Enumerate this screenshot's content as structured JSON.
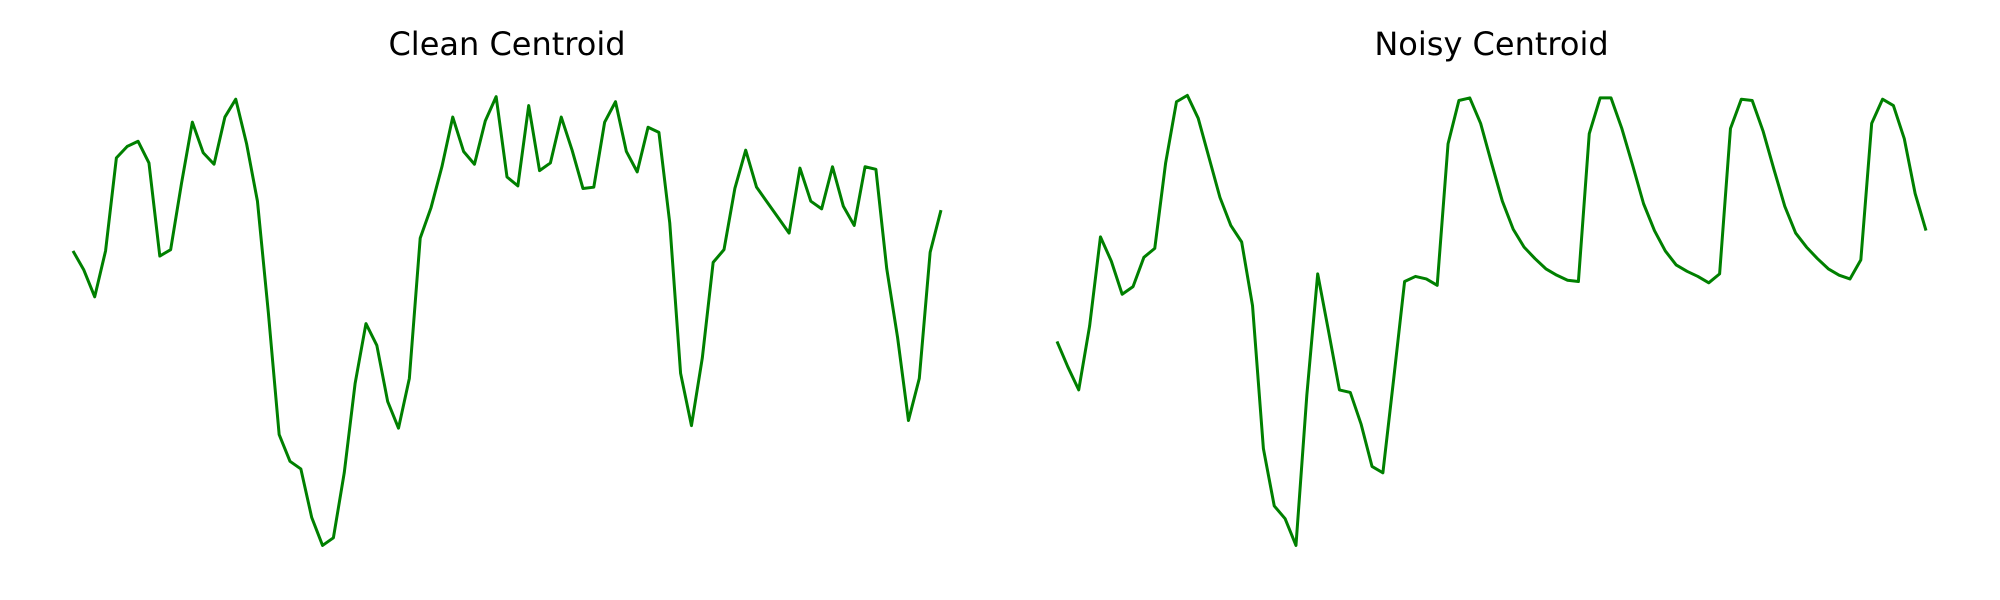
{
  "chart_data": [
    {
      "type": "line",
      "title": "Clean Centroid",
      "ylim": [
        0,
        360
      ],
      "series": [
        {
          "color": "#008000",
          "values": [
            233,
            218,
            197,
            233,
            306,
            315,
            319,
            302,
            229,
            234,
            286,
            334,
            310,
            301,
            338,
            352,
            317,
            272,
            185,
            89,
            68,
            62,
            24,
            2,
            8,
            59,
            129,
            176,
            159,
            115,
            94,
            133,
            243,
            267,
            299,
            338,
            311,
            301,
            335,
            354,
            291,
            284,
            347,
            296,
            302,
            338,
            312,
            282,
            283,
            334,
            350,
            311,
            295,
            330,
            326,
            255,
            137,
            96,
            149,
            224,
            234,
            282,
            312,
            283,
            271,
            259,
            247,
            298,
            272,
            266,
            299,
            268,
            253,
            299,
            297,
            219,
            165,
            100,
            133,
            232,
            265
          ]
        }
      ]
    },
    {
      "type": "line",
      "title": "Noisy Centroid",
      "ylim": [
        0,
        360
      ],
      "series": [
        {
          "color": "#008000",
          "values": [
            162,
            142,
            124,
            174,
            244,
            225,
            199,
            205,
            228,
            235,
            302,
            350,
            355,
            337,
            306,
            275,
            253,
            240,
            190,
            78,
            33,
            23,
            2,
            120,
            215,
            170,
            124,
            122,
            97,
            64,
            59,
            133,
            209,
            213,
            211,
            206,
            317,
            351,
            353,
            333,
            302,
            272,
            250,
            236,
            227,
            219,
            214,
            210,
            209,
            325,
            353,
            353,
            329,
            300,
            270,
            249,
            233,
            222,
            217,
            213,
            208,
            215,
            329,
            352,
            351,
            327,
            297,
            268,
            247,
            236,
            227,
            219,
            214,
            211,
            226,
            333,
            352,
            347,
            321,
            278,
            249
          ]
        }
      ]
    }
  ]
}
